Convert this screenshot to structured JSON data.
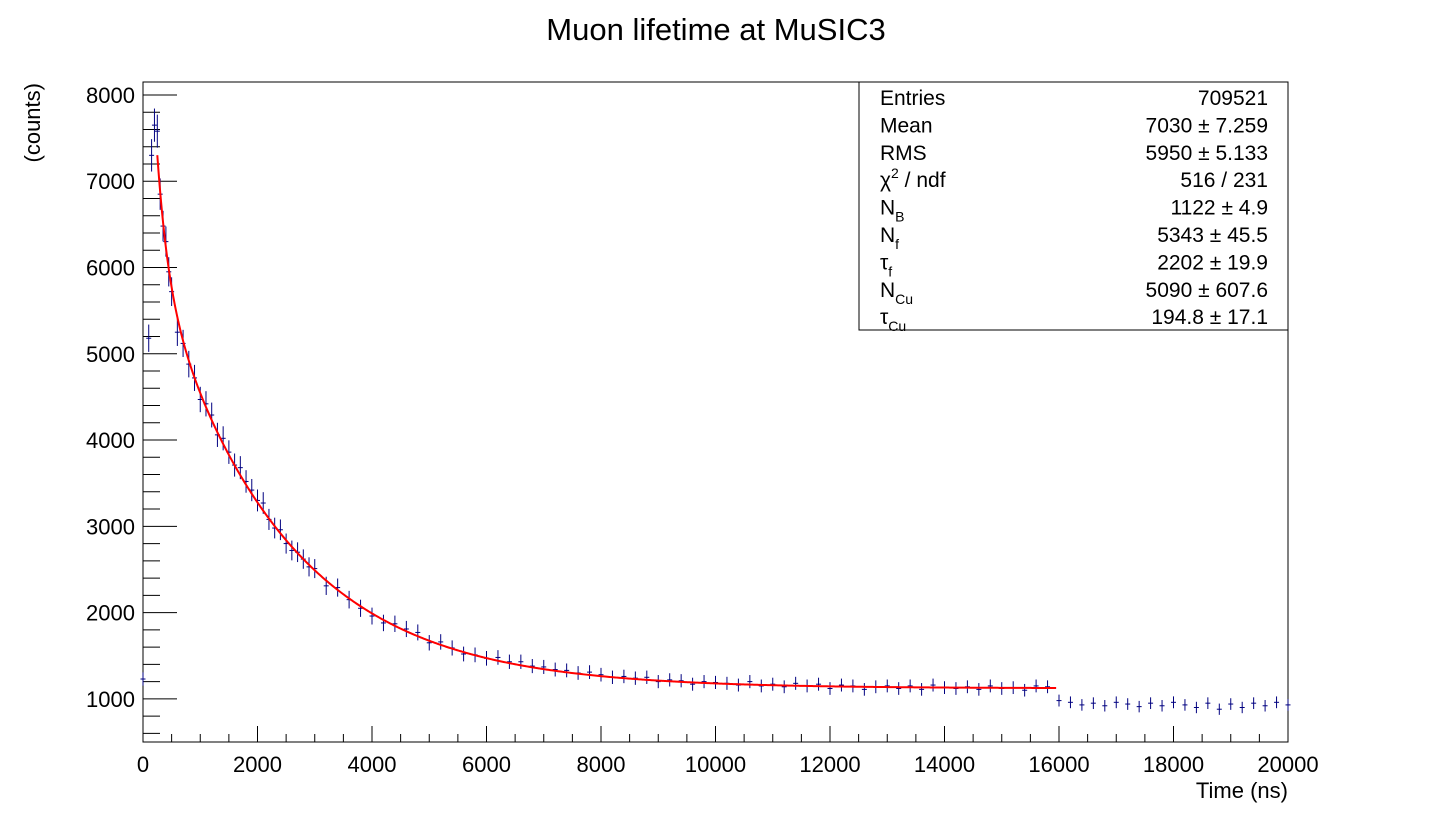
{
  "chart_data": {
    "type": "scatter",
    "title": "Muon lifetime at MuSIC3",
    "xlabel": "Time (ns)",
    "ylabel": "(counts)",
    "xlim": [
      0,
      20000
    ],
    "ylim": [
      500,
      8150
    ],
    "x_ticks": [
      "0",
      "2000",
      "4000",
      "6000",
      "8000",
      "10000",
      "12000",
      "14000",
      "16000",
      "18000",
      "20000"
    ],
    "y_ticks": [
      "1000",
      "2000",
      "3000",
      "4000",
      "5000",
      "6000",
      "7000",
      "8000"
    ],
    "grid": false,
    "data_color": "#000080",
    "fit_color": "#ff0000",
    "stats_box": {
      "placement": "top-right",
      "rows": [
        {
          "name": "Entries",
          "sub": "",
          "sup": "",
          "suffix": "",
          "value": "709521"
        },
        {
          "name": "Mean",
          "sub": "",
          "sup": "",
          "suffix": "",
          "value": "7030 ±  7.259"
        },
        {
          "name": "RMS",
          "sub": "",
          "sup": "",
          "suffix": "",
          "value": "5950 ±  5.133"
        },
        {
          "name": "χ",
          "sub": "",
          "sup": "2",
          "suffix": " / ndf",
          "value": "516 / 231"
        },
        {
          "name": "N",
          "sub": "B",
          "sup": "",
          "suffix": "",
          "value": "1122 ± 4.9"
        },
        {
          "name": "N",
          "sub": "f",
          "sup": "",
          "suffix": "",
          "value": "5343 ± 45.5"
        },
        {
          "name": "τ",
          "sub": "f",
          "sup": "",
          "suffix": "",
          "value": "2202 ± 19.9"
        },
        {
          "name": "N",
          "sub": "Cu",
          "sup": "",
          "suffix": "",
          "value": "5090 ± 607.6"
        },
        {
          "name": "τ",
          "sub": "Cu",
          "sup": "",
          "suffix": "",
          "value": "194.8 ± 17.1"
        }
      ]
    },
    "fit": {
      "name": "",
      "model": "N_B + N_f*exp(-t/tau_f) + N_Cu*exp(-t/tau_Cu)",
      "params": {
        "N_B": 1122,
        "N_f": 5343,
        "tau_f": 2202,
        "N_Cu": 5090,
        "tau_Cu": 194.8
      },
      "x_range": [
        250,
        15950
      ]
    },
    "series": [
      {
        "points": [
          [
            0,
            1230
          ],
          [
            100,
            5180
          ],
          [
            150,
            7300
          ],
          [
            200,
            7650
          ],
          [
            250,
            7580
          ],
          [
            300,
            6850
          ],
          [
            350,
            6480
          ],
          [
            400,
            6300
          ],
          [
            450,
            5950
          ],
          [
            500,
            5720
          ],
          [
            600,
            5250
          ],
          [
            700,
            5120
          ],
          [
            800,
            4880
          ],
          [
            900,
            4720
          ],
          [
            1000,
            4470
          ],
          [
            1100,
            4420
          ],
          [
            1200,
            4290
          ],
          [
            1300,
            4060
          ],
          [
            1400,
            4020
          ],
          [
            1500,
            3860
          ],
          [
            1600,
            3710
          ],
          [
            1700,
            3680
          ],
          [
            1800,
            3520
          ],
          [
            1900,
            3420
          ],
          [
            2000,
            3300
          ],
          [
            2100,
            3270
          ],
          [
            2200,
            3080
          ],
          [
            2300,
            2980
          ],
          [
            2400,
            2960
          ],
          [
            2500,
            2800
          ],
          [
            2600,
            2720
          ],
          [
            2700,
            2700
          ],
          [
            2800,
            2620
          ],
          [
            2900,
            2530
          ],
          [
            3000,
            2510
          ],
          [
            3200,
            2310
          ],
          [
            3400,
            2290
          ],
          [
            3600,
            2150
          ],
          [
            3800,
            2050
          ],
          [
            4000,
            1960
          ],
          [
            4200,
            1880
          ],
          [
            4400,
            1870
          ],
          [
            4600,
            1810
          ],
          [
            4800,
            1770
          ],
          [
            5000,
            1650
          ],
          [
            5200,
            1660
          ],
          [
            5400,
            1590
          ],
          [
            5600,
            1520
          ],
          [
            5800,
            1510
          ],
          [
            6000,
            1470
          ],
          [
            6200,
            1480
          ],
          [
            6400,
            1430
          ],
          [
            6600,
            1430
          ],
          [
            6800,
            1380
          ],
          [
            7000,
            1370
          ],
          [
            7200,
            1340
          ],
          [
            7400,
            1330
          ],
          [
            7600,
            1300
          ],
          [
            7800,
            1310
          ],
          [
            8000,
            1280
          ],
          [
            8200,
            1250
          ],
          [
            8400,
            1260
          ],
          [
            8600,
            1240
          ],
          [
            8800,
            1250
          ],
          [
            9000,
            1200
          ],
          [
            9200,
            1220
          ],
          [
            9400,
            1210
          ],
          [
            9600,
            1170
          ],
          [
            9800,
            1200
          ],
          [
            10000,
            1190
          ],
          [
            10200,
            1180
          ],
          [
            10400,
            1160
          ],
          [
            10600,
            1200
          ],
          [
            10800,
            1150
          ],
          [
            11000,
            1170
          ],
          [
            11200,
            1140
          ],
          [
            11400,
            1180
          ],
          [
            11600,
            1150
          ],
          [
            11800,
            1170
          ],
          [
            12000,
            1120
          ],
          [
            12200,
            1160
          ],
          [
            12400,
            1150
          ],
          [
            12600,
            1110
          ],
          [
            12800,
            1140
          ],
          [
            13000,
            1150
          ],
          [
            13200,
            1120
          ],
          [
            13400,
            1150
          ],
          [
            13600,
            1110
          ],
          [
            13800,
            1160
          ],
          [
            14000,
            1130
          ],
          [
            14200,
            1120
          ],
          [
            14400,
            1140
          ],
          [
            14600,
            1110
          ],
          [
            14800,
            1150
          ],
          [
            15000,
            1120
          ],
          [
            15200,
            1130
          ],
          [
            15400,
            1100
          ],
          [
            15600,
            1150
          ],
          [
            15800,
            1140
          ],
          [
            16000,
            980
          ],
          [
            16200,
            960
          ],
          [
            16400,
            930
          ],
          [
            16600,
            950
          ],
          [
            16800,
            920
          ],
          [
            17000,
            960
          ],
          [
            17200,
            940
          ],
          [
            17400,
            910
          ],
          [
            17600,
            950
          ],
          [
            17800,
            920
          ],
          [
            18000,
            960
          ],
          [
            18200,
            930
          ],
          [
            18400,
            900
          ],
          [
            18600,
            950
          ],
          [
            18800,
            880
          ],
          [
            19000,
            940
          ],
          [
            19200,
            900
          ],
          [
            19400,
            950
          ],
          [
            19600,
            920
          ],
          [
            19800,
            960
          ],
          [
            20000,
            930
          ]
        ]
      }
    ]
  }
}
